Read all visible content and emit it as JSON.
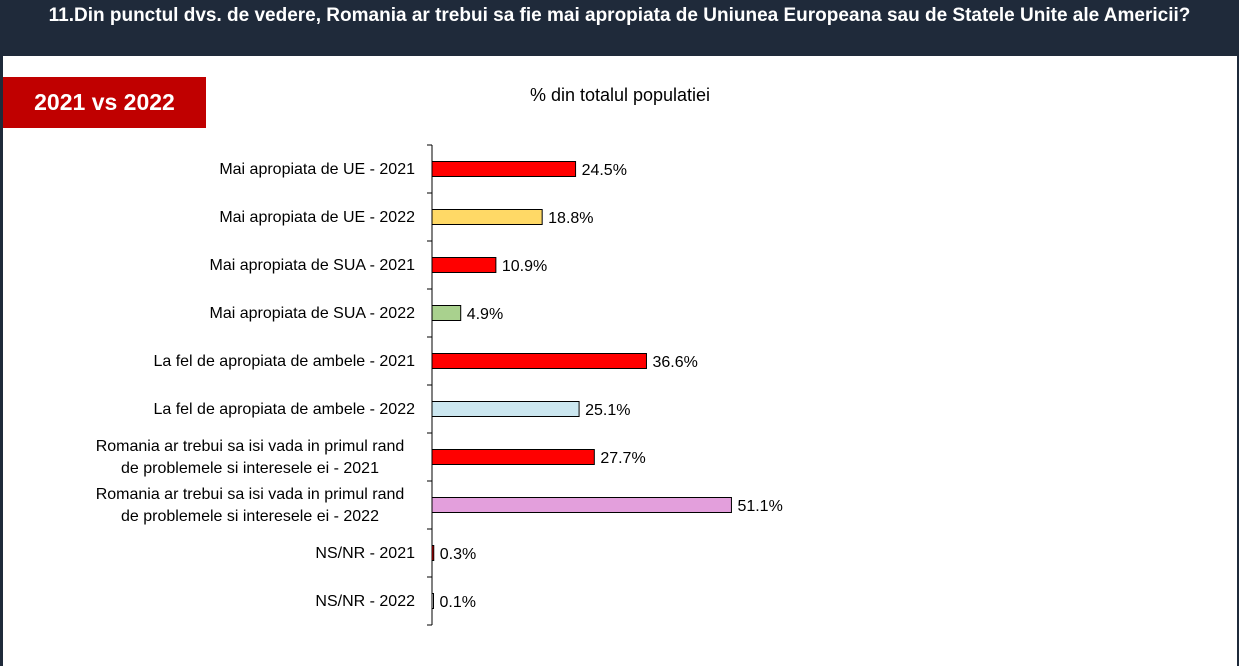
{
  "header": {
    "title": "11.Din punctul dvs. de vedere, Romania ar trebui sa fie mai apropiata de Uniunea Europeana sau de Statele Unite ale Americii?"
  },
  "badge": {
    "label": "2021 vs 2022",
    "color": "#c00000"
  },
  "colors": {
    "header_bg": "#1f2a3a"
  },
  "chart_data": {
    "type": "bar",
    "orientation": "horizontal",
    "subtitle": "% din totalul populatiei",
    "value_suffix": "%",
    "grid": false,
    "legend": "none",
    "xlim": [
      0,
      60
    ],
    "categories": [
      [
        "Mai apropiata de UE - 2021"
      ],
      [
        "Mai apropiata de UE - 2022"
      ],
      [
        "Mai apropiata de SUA - 2021"
      ],
      [
        "Mai apropiata de SUA - 2022"
      ],
      [
        "La fel de apropiata de ambele - 2021"
      ],
      [
        "La fel de apropiata de ambele - 2022"
      ],
      [
        "Romania ar trebui sa isi vada in primul rand",
        "de problemele si interesele ei - 2021"
      ],
      [
        "Romania ar trebui sa isi vada in primul rand",
        "de problemele si interesele ei - 2022"
      ],
      [
        "NS/NR - 2021"
      ],
      [
        "NS/NR - 2022"
      ]
    ],
    "values": [
      24.5,
      18.8,
      10.9,
      4.9,
      36.6,
      25.1,
      27.7,
      51.1,
      0.3,
      0.1
    ],
    "value_labels": [
      "24.5%",
      "18.8%",
      "10.9%",
      "4.9%",
      "36.6%",
      "25.1%",
      "27.7%",
      "51.1%",
      "0.3%",
      "0.1%"
    ],
    "bar_colors": [
      "#ff0000",
      "#ffd966",
      "#ff0000",
      "#a9d18e",
      "#ff0000",
      "#cce7f0",
      "#ff0000",
      "#e39fdc",
      "#ff0000",
      "#ffffff"
    ]
  }
}
